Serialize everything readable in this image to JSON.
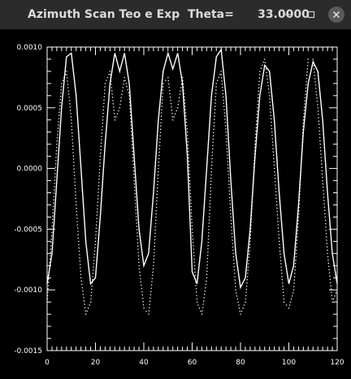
{
  "window": {
    "title": "Azimuth Scan Teo e Exp  Theta=      33.0000",
    "minimize_icon": "minus-icon",
    "maximize_icon": "square-icon",
    "close_icon": "x-icon"
  },
  "chart_data": {
    "type": "line",
    "title": "",
    "xlabel": "",
    "ylabel": "",
    "xlim": [
      0,
      120
    ],
    "ylim": [
      -0.0015,
      0.001
    ],
    "x_ticks": [
      "0",
      "20",
      "40",
      "60",
      "80",
      "100",
      "120"
    ],
    "y_ticks": [
      "0.0010",
      "0.0005",
      "0.0000",
      "-0.0005",
      "-0.0010",
      "-0.0015"
    ],
    "grid": false,
    "background": "#000000",
    "foreground": "#ffffff",
    "series": [
      {
        "style": "solid",
        "x": [
          0,
          2,
          4,
          6,
          8,
          10,
          12,
          14,
          16,
          18,
          20,
          22,
          24,
          26,
          28,
          30,
          32,
          34,
          36,
          38,
          40,
          42,
          44,
          46,
          48,
          50,
          52,
          54,
          56,
          58,
          60,
          62,
          64,
          66,
          68,
          70,
          72,
          74,
          76,
          78,
          80,
          82,
          84,
          86,
          88,
          90,
          92,
          94,
          96,
          98,
          100,
          102,
          104,
          106,
          108,
          110,
          112,
          114,
          116,
          118,
          120
        ],
        "y": [
          -0.00095,
          -0.0007,
          -0.0001,
          0.0005,
          0.00092,
          0.00095,
          0.0006,
          0.0,
          -0.0006,
          -0.00095,
          -0.0009,
          -0.0004,
          0.0002,
          0.0007,
          0.00095,
          0.0008,
          0.00095,
          0.0007,
          0.0001,
          -0.0005,
          -0.0008,
          -0.0007,
          -0.0002,
          0.0004,
          0.0008,
          0.00095,
          0.00082,
          0.00095,
          0.0007,
          0.0001,
          -0.00085,
          -0.00095,
          -0.0006,
          0.0,
          0.0006,
          0.00092,
          0.00098,
          0.0006,
          -0.0001,
          -0.0007,
          -0.00098,
          -0.0009,
          -0.0005,
          0.0001,
          0.0006,
          0.00085,
          0.0008,
          0.0004,
          -0.0002,
          -0.0007,
          -0.00095,
          -0.0008,
          -0.0003,
          0.0003,
          0.0007,
          0.00088,
          0.0008,
          0.0004,
          -0.0002,
          -0.0007,
          -0.00095
        ]
      },
      {
        "style": "dotted",
        "x": [
          0,
          2,
          4,
          6,
          8,
          10,
          12,
          14,
          16,
          18,
          20,
          22,
          24,
          26,
          28,
          30,
          32,
          34,
          36,
          38,
          40,
          42,
          44,
          46,
          48,
          50,
          52,
          54,
          56,
          58,
          60,
          62,
          64,
          66,
          68,
          70,
          72,
          74,
          76,
          78,
          80,
          82,
          84,
          86,
          88,
          90,
          92,
          94,
          96,
          98,
          100,
          102,
          104,
          106,
          108,
          110,
          112,
          114,
          116,
          118,
          120
        ],
        "y": [
          -0.0011,
          -0.0005,
          0.0002,
          0.0007,
          0.0008,
          0.0004,
          -0.0003,
          -0.0009,
          -0.0012,
          -0.0011,
          -0.0006,
          0.0001,
          0.0007,
          0.0008,
          0.0004,
          0.0005,
          0.00075,
          0.0006,
          -0.0001,
          -0.0008,
          -0.00115,
          -0.0012,
          -0.0008,
          0.0,
          0.0007,
          0.00075,
          0.0004,
          0.0005,
          0.00075,
          0.0003,
          -0.0005,
          -0.0011,
          -0.0012,
          -0.0009,
          0.0,
          0.0007,
          0.0008,
          0.0003,
          -0.0004,
          -0.001,
          -0.0012,
          -0.0011,
          -0.0006,
          0.0002,
          0.0008,
          0.0009,
          0.0006,
          0.0,
          -0.0006,
          -0.0011,
          -0.00115,
          -0.001,
          -0.0004,
          0.0004,
          0.0009,
          0.0009,
          0.0005,
          -0.0001,
          -0.0007,
          -0.0011,
          -0.001
        ]
      }
    ]
  }
}
